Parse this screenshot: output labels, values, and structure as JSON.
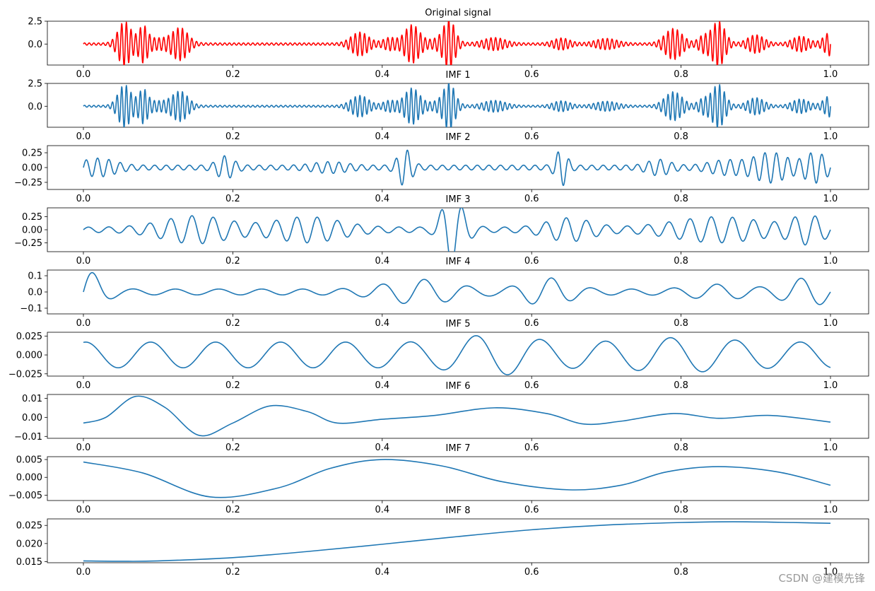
{
  "watermark": "CSDN @建模先锋",
  "chart_data": [
    {
      "type": "line",
      "title": "Original signal",
      "color": "#ff0000",
      "xlim": [
        0,
        1
      ],
      "ylim": [
        -2.3,
        2.5
      ],
      "xticks": [
        "0.0",
        "0.2",
        "0.4",
        "0.6",
        "0.8",
        "1.0"
      ],
      "yticks": [
        {
          "value": 2.5,
          "label": "2.5"
        },
        {
          "value": 0.0,
          "label": "0.0"
        }
      ],
      "signal": {
        "kind": "bursts",
        "freq": 160,
        "base": 0.12,
        "bursts": [
          [
            0.055,
            2.3,
            0.012
          ],
          [
            0.08,
            1.6,
            0.008
          ],
          [
            0.13,
            1.5,
            0.014
          ],
          [
            0.1,
            0.55,
            0.03
          ],
          [
            0.37,
            1.2,
            0.016
          ],
          [
            0.41,
            0.6,
            0.012
          ],
          [
            0.44,
            2.0,
            0.014
          ],
          [
            0.48,
            0.6,
            0.02
          ],
          [
            0.49,
            2.2,
            0.01
          ],
          [
            0.55,
            0.6,
            0.02
          ],
          [
            0.64,
            0.55,
            0.015
          ],
          [
            0.7,
            0.5,
            0.02
          ],
          [
            0.79,
            1.6,
            0.016
          ],
          [
            0.83,
            0.8,
            0.01
          ],
          [
            0.85,
            2.4,
            0.012
          ],
          [
            0.9,
            0.9,
            0.015
          ],
          [
            0.96,
            0.75,
            0.015
          ],
          [
            1.0,
            1.2,
            0.012
          ]
        ]
      }
    },
    {
      "type": "line",
      "title": "IMF 1",
      "color": "#1f77b4",
      "xlim": [
        0,
        1
      ],
      "ylim": [
        -2.3,
        2.5
      ],
      "xticks": [
        "0.0",
        "0.2",
        "0.4",
        "0.6",
        "0.8",
        "1.0"
      ],
      "yticks": [
        {
          "value": 2.5,
          "label": "2.5"
        },
        {
          "value": 0.0,
          "label": "0.0"
        }
      ],
      "signal": {
        "kind": "bursts",
        "freq": 160,
        "base": 0.1,
        "bursts": [
          [
            0.055,
            2.2,
            0.012
          ],
          [
            0.08,
            1.5,
            0.008
          ],
          [
            0.13,
            1.4,
            0.014
          ],
          [
            0.1,
            0.5,
            0.03
          ],
          [
            0.37,
            1.1,
            0.016
          ],
          [
            0.41,
            0.55,
            0.012
          ],
          [
            0.44,
            1.9,
            0.014
          ],
          [
            0.48,
            0.55,
            0.02
          ],
          [
            0.49,
            2.1,
            0.01
          ],
          [
            0.55,
            0.55,
            0.02
          ],
          [
            0.64,
            0.5,
            0.015
          ],
          [
            0.7,
            0.45,
            0.02
          ],
          [
            0.79,
            1.5,
            0.016
          ],
          [
            0.83,
            0.75,
            0.01
          ],
          [
            0.85,
            2.3,
            0.012
          ],
          [
            0.9,
            0.85,
            0.015
          ],
          [
            0.96,
            0.7,
            0.015
          ],
          [
            1.0,
            1.1,
            0.012
          ]
        ]
      }
    },
    {
      "type": "line",
      "title": "IMF 2",
      "color": "#1f77b4",
      "xlim": [
        0,
        1
      ],
      "ylim": [
        -0.37,
        0.37
      ],
      "xticks": [
        "0.0",
        "0.2",
        "0.4",
        "0.6",
        "0.8",
        "1.0"
      ],
      "yticks": [
        {
          "value": 0.25,
          "label": "0.25"
        },
        {
          "value": 0.0,
          "label": "0.00"
        },
        {
          "value": -0.25,
          "label": "−0.25"
        }
      ],
      "signal": {
        "kind": "bursts",
        "freq": 65,
        "base": 0.04,
        "bursts": [
          [
            0.02,
            0.12,
            0.03
          ],
          [
            0.19,
            0.16,
            0.015
          ],
          [
            0.43,
            0.28,
            0.012
          ],
          [
            0.33,
            0.06,
            0.03
          ],
          [
            0.64,
            0.28,
            0.01
          ],
          [
            0.77,
            0.1,
            0.02
          ],
          [
            0.92,
            0.22,
            0.03
          ],
          [
            0.98,
            0.22,
            0.02
          ],
          [
            0.86,
            0.09,
            0.03
          ]
        ]
      }
    },
    {
      "type": "line",
      "title": "IMF 3",
      "color": "#1f77b4",
      "xlim": [
        0,
        1
      ],
      "ylim": [
        -0.42,
        0.42
      ],
      "xticks": [
        "0.0",
        "0.2",
        "0.4",
        "0.6",
        "0.8",
        "1.0"
      ],
      "yticks": [
        {
          "value": 0.25,
          "label": "0.25"
        },
        {
          "value": 0.0,
          "label": "0.00"
        },
        {
          "value": -0.25,
          "label": "−0.25"
        }
      ],
      "signal": {
        "kind": "bursts",
        "freq": 36,
        "base": 0.05,
        "bursts": [
          [
            0.15,
            0.22,
            0.06
          ],
          [
            0.3,
            0.2,
            0.06
          ],
          [
            0.49,
            0.38,
            0.015
          ],
          [
            0.5,
            0.3,
            0.02
          ],
          [
            0.65,
            0.18,
            0.04
          ],
          [
            0.85,
            0.2,
            0.08
          ],
          [
            0.97,
            0.22,
            0.03
          ]
        ]
      }
    },
    {
      "type": "line",
      "title": "IMF 4",
      "color": "#1f77b4",
      "xlim": [
        0,
        1
      ],
      "ylim": [
        -0.135,
        0.135
      ],
      "xticks": [
        "0.0",
        "0.2",
        "0.4",
        "0.6",
        "0.8",
        "1.0"
      ],
      "yticks": [
        {
          "value": 0.1,
          "label": "0.1"
        },
        {
          "value": 0.0,
          "label": "0.0"
        },
        {
          "value": -0.1,
          "label": "−0.1"
        }
      ],
      "signal": {
        "kind": "bursts",
        "freq": 18,
        "base": 0.018,
        "bursts": [
          [
            0.0,
            0.12,
            0.03
          ],
          [
            0.45,
            0.06,
            0.06
          ],
          [
            0.62,
            0.07,
            0.04
          ],
          [
            0.85,
            0.03,
            0.05
          ],
          [
            0.97,
            0.07,
            0.04
          ]
        ]
      }
    },
    {
      "type": "line",
      "title": "IMF 5",
      "color": "#1f77b4",
      "xlim": [
        0,
        1
      ],
      "ylim": [
        -0.028,
        0.03
      ],
      "xticks": [
        "0.0",
        "0.2",
        "0.4",
        "0.6",
        "0.8",
        "1.0"
      ],
      "yticks": [
        {
          "value": 0.025,
          "label": "0.025"
        },
        {
          "value": 0.0,
          "label": "0.000"
        },
        {
          "value": -0.025,
          "label": "−0.025"
        }
      ],
      "signal": {
        "kind": "sine",
        "amp": 0.017,
        "freq": 11.5,
        "phase": 1.35,
        "mod": [
          [
            0.55,
            0.01,
            0.06
          ],
          [
            0.8,
            0.006,
            0.08
          ]
        ]
      }
    },
    {
      "type": "line",
      "title": "IMF 6",
      "color": "#1f77b4",
      "xlim": [
        0,
        1
      ],
      "ylim": [
        -0.011,
        0.012
      ],
      "xticks": [
        "0.0",
        "0.2",
        "0.4",
        "0.6",
        "0.8",
        "1.0"
      ],
      "yticks": [
        {
          "value": 0.01,
          "label": "0.01"
        },
        {
          "value": 0.0,
          "label": "0.00"
        },
        {
          "value": -0.01,
          "label": "−0.01"
        }
      ],
      "signal": {
        "kind": "points",
        "x": [
          0.0,
          0.03,
          0.07,
          0.11,
          0.155,
          0.2,
          0.25,
          0.3,
          0.34,
          0.4,
          0.47,
          0.55,
          0.62,
          0.67,
          0.72,
          0.79,
          0.85,
          0.92,
          1.0
        ],
        "y": [
          -0.003,
          0.0,
          0.011,
          0.005,
          -0.0095,
          -0.003,
          0.006,
          0.003,
          -0.003,
          -0.001,
          0.001,
          0.005,
          0.002,
          -0.0035,
          -0.002,
          0.002,
          -0.0005,
          0.001,
          -0.0025
        ]
      }
    },
    {
      "type": "line",
      "title": "IMF 7",
      "color": "#1f77b4",
      "xlim": [
        0,
        1
      ],
      "ylim": [
        -0.0065,
        0.0058
      ],
      "xticks": [
        "0.0",
        "0.2",
        "0.4",
        "0.6",
        "0.8",
        "1.0"
      ],
      "yticks": [
        {
          "value": 0.005,
          "label": "0.005"
        },
        {
          "value": 0.0,
          "label": "0.000"
        },
        {
          "value": -0.005,
          "label": "−0.005"
        }
      ],
      "signal": {
        "kind": "points",
        "x": [
          0.0,
          0.08,
          0.17,
          0.26,
          0.33,
          0.4,
          0.48,
          0.56,
          0.65,
          0.72,
          0.78,
          0.85,
          0.93,
          1.0
        ],
        "y": [
          0.0043,
          0.0012,
          -0.0055,
          -0.003,
          0.0025,
          0.005,
          0.0032,
          -0.0012,
          -0.0035,
          -0.0022,
          0.0015,
          0.003,
          0.0015,
          -0.0022
        ]
      }
    },
    {
      "type": "line",
      "title": "IMF 8",
      "color": "#1f77b4",
      "xlim": [
        0,
        1
      ],
      "ylim": [
        0.0147,
        0.0268
      ],
      "xticks": [
        "0.0",
        "0.2",
        "0.4",
        "0.6",
        "0.8",
        "1.0"
      ],
      "yticks": [
        {
          "value": 0.025,
          "label": "0.025"
        },
        {
          "value": 0.02,
          "label": "0.020"
        },
        {
          "value": 0.015,
          "label": "0.015"
        }
      ],
      "signal": {
        "kind": "points",
        "x": [
          0.0,
          0.05,
          0.1,
          0.2,
          0.3,
          0.4,
          0.5,
          0.6,
          0.7,
          0.8,
          0.87,
          0.95,
          1.0
        ],
        "y": [
          0.0152,
          0.0151,
          0.0152,
          0.0161,
          0.0178,
          0.0198,
          0.0219,
          0.0238,
          0.0251,
          0.0258,
          0.026,
          0.0258,
          0.0256
        ]
      }
    }
  ]
}
